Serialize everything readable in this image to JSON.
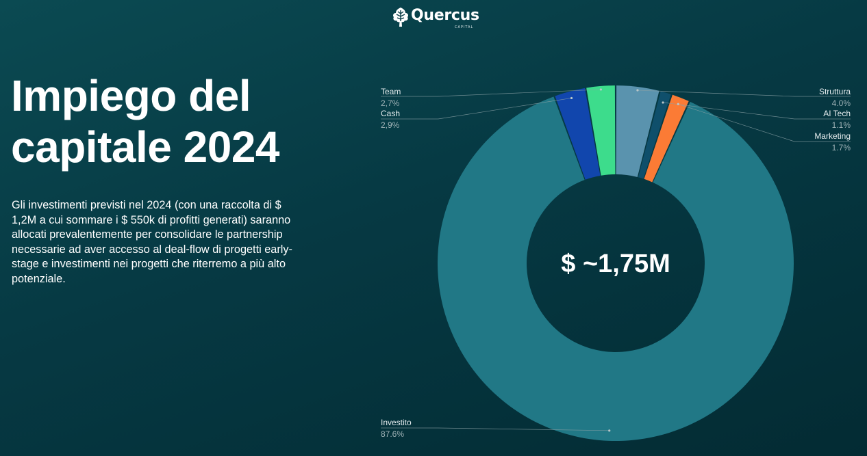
{
  "logo": {
    "name": "Quercus",
    "sub": "CAPITAL"
  },
  "title_line1": "Impiego del",
  "title_line2": "capitale 2024",
  "description": "Gli investimenti previsti nel 2024 (con una raccolta di $ 1,2M a cui sommare i $ 550k di profitti generati) saranno allocati prevalentemente per consolidare le partnership necessarie ad aver accesso al deal-flow di progetti early-stage e investimenti nei progetti che riterremo a più alto potenziale.",
  "colors": {
    "Struttura": "#5a93ae",
    "AI Tech": "#0f4f6b",
    "Marketing": "#fb7b35",
    "Investito": "#217886",
    "Team": "#3ddc8c",
    "Cash": "#1146ad"
  },
  "chart_data": {
    "type": "pie",
    "donut": true,
    "center_label": "$ ~1,75M",
    "slices": [
      {
        "name": "Struttura",
        "value": 4.0,
        "label": "4.0%"
      },
      {
        "name": "AI Tech",
        "value": 1.1,
        "label": "1.1%"
      },
      {
        "name": "Marketing",
        "value": 1.7,
        "label": "1.7%"
      },
      {
        "name": "Investito",
        "value": 87.6,
        "label": "87.6%"
      },
      {
        "name": "Cash",
        "value": 2.9,
        "label": "2,9%"
      },
      {
        "name": "Team",
        "value": 2.7,
        "label": "2,7%"
      }
    ]
  }
}
